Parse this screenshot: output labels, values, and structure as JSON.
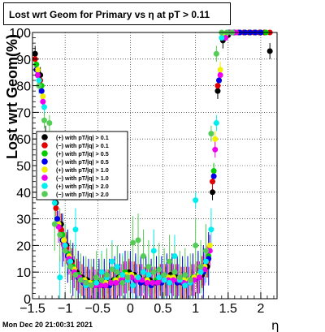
{
  "chart_data": {
    "type": "scatter",
    "title": "Lost wrt Geom for Primary vs  η at pT > 0.11",
    "xlabel": "η",
    "ylabel": "Lost wrt Geom(%)",
    "xlim": [
      -1.5,
      2.25
    ],
    "ylim": [
      0,
      100
    ],
    "x_ticks": [
      -1.5,
      -1,
      -0.5,
      0,
      0.5,
      1,
      1.5,
      2
    ],
    "x_tick_labels": [
      "−1.5",
      "−1",
      "−0.5",
      "0",
      "0.5",
      "1",
      "1.5",
      "2"
    ],
    "y_ticks": [
      0,
      10,
      20,
      30,
      40,
      50,
      60,
      70,
      80,
      90,
      100
    ],
    "grid": true,
    "legend_position": "middle-left",
    "series": [
      {
        "name": "(+) with pT/|q| > 0.1",
        "color": "#000000",
        "x": [
          -1.46,
          -1.38,
          -1.3,
          -1.22,
          -1.14,
          -1.06,
          -0.98,
          -0.9,
          -0.82,
          -0.74,
          -0.66,
          -0.58,
          -0.5,
          -0.42,
          -0.34,
          -0.26,
          -0.18,
          -0.1,
          -0.02,
          0.06,
          0.14,
          0.22,
          0.3,
          0.38,
          0.46,
          0.54,
          0.62,
          0.7,
          0.78,
          0.86,
          0.94,
          1.02,
          1.1,
          1.18,
          1.26,
          1.34,
          1.42,
          1.5,
          1.58,
          1.66,
          1.74,
          1.82,
          1.9,
          1.98,
          2.06,
          2.14
        ],
        "y": [
          92,
          84,
          62,
          45,
          36,
          28,
          20,
          14,
          10,
          8,
          7,
          6,
          6,
          5,
          6,
          7,
          8,
          9,
          10,
          9,
          8,
          7,
          7,
          6,
          7,
          8,
          9,
          8,
          7,
          6,
          7,
          8,
          9,
          12,
          40,
          78,
          97,
          99,
          100,
          100,
          100,
          100,
          100,
          100,
          100,
          93
        ]
      },
      {
        "name": "(−) with pT/|q| > 0.1",
        "color": "#e00000",
        "x": [
          -1.46,
          -1.38,
          -1.3,
          -1.22,
          -1.14,
          -1.06,
          -0.98,
          -0.9,
          -0.82,
          -0.74,
          -0.66,
          -0.58,
          -0.5,
          -0.42,
          -0.34,
          -0.26,
          -0.18,
          -0.1,
          -0.02,
          0.06,
          0.14,
          0.22,
          0.3,
          0.38,
          0.46,
          0.54,
          0.62,
          0.7,
          0.78,
          0.86,
          0.94,
          1.02,
          1.1,
          1.18,
          1.26,
          1.34,
          1.42,
          1.5,
          1.58,
          1.66,
          1.74,
          1.82,
          1.9,
          1.98,
          2.06,
          2.14
        ],
        "y": [
          90,
          82,
          60,
          44,
          34,
          26,
          19,
          13,
          9,
          7,
          6,
          6,
          5,
          5,
          5,
          6,
          7,
          8,
          9,
          8,
          7,
          6,
          6,
          6,
          7,
          7,
          8,
          7,
          6,
          6,
          7,
          8,
          10,
          14,
          44,
          80,
          98,
          100,
          100,
          100,
          100,
          100,
          100,
          100,
          100,
          100
        ]
      },
      {
        "name": "(+) with pT/|q| > 0.5",
        "color": "#00cc00",
        "x": [
          -1.44,
          -1.36,
          -1.28,
          -1.2,
          -1.12,
          -1.04,
          -0.96,
          -0.88,
          -0.8,
          -0.72,
          -0.64,
          -0.56,
          -0.48,
          -0.4,
          -0.32,
          -0.24,
          -0.16,
          -0.08,
          0.0,
          0.08,
          0.16,
          0.24,
          0.32,
          0.4,
          0.48,
          0.56,
          0.64,
          0.72,
          0.8,
          0.88,
          0.96,
          1.04,
          1.12,
          1.2,
          1.28,
          1.36,
          1.44,
          1.52,
          1.6,
          1.68,
          1.76,
          1.84,
          1.92,
          2.0,
          2.08
        ],
        "y": [
          88,
          80,
          58,
          42,
          30,
          24,
          17,
          12,
          9,
          7,
          6,
          6,
          5,
          6,
          6,
          7,
          8,
          10,
          9,
          8,
          7,
          7,
          6,
          7,
          8,
          8,
          8,
          7,
          7,
          7,
          8,
          9,
          11,
          16,
          48,
          82,
          98,
          100,
          100,
          100,
          100,
          100,
          100,
          100,
          100
        ]
      },
      {
        "name": "(−) with pT/|q| > 0.5",
        "color": "#0000ee",
        "x": [
          -1.44,
          -1.36,
          -1.28,
          -1.2,
          -1.12,
          -1.04,
          -0.96,
          -0.88,
          -0.8,
          -0.72,
          -0.64,
          -0.56,
          -0.48,
          -0.4,
          -0.32,
          -0.24,
          -0.16,
          -0.08,
          0.0,
          0.08,
          0.16,
          0.24,
          0.32,
          0.4,
          0.48,
          0.56,
          0.64,
          0.72,
          0.8,
          0.88,
          0.96,
          1.04,
          1.12,
          1.2,
          1.28,
          1.36,
          1.44,
          1.52,
          1.6,
          1.68,
          1.76,
          1.84,
          1.92,
          2.0
        ],
        "y": [
          86,
          78,
          56,
          40,
          30,
          22,
          16,
          11,
          8,
          6,
          5,
          5,
          5,
          5,
          5,
          6,
          7,
          8,
          8,
          7,
          6,
          6,
          5,
          6,
          6,
          7,
          7,
          6,
          6,
          6,
          7,
          8,
          10,
          15,
          46,
          82,
          98,
          100,
          100,
          100,
          100,
          100,
          100,
          100
        ]
      },
      {
        "name": "(+) with pT/|q| > 1.0",
        "color": "#f0f000",
        "x": [
          -1.42,
          -1.34,
          -1.26,
          -1.18,
          -1.1,
          -1.02,
          -0.94,
          -0.86,
          -0.78,
          -0.7,
          -0.62,
          -0.54,
          -0.46,
          -0.38,
          -0.3,
          -0.22,
          -0.14,
          -0.06,
          0.02,
          0.1,
          0.18,
          0.26,
          0.34,
          0.42,
          0.5,
          0.58,
          0.66,
          0.74,
          0.82,
          0.9,
          0.98,
          1.06,
          1.14,
          1.22,
          1.3,
          1.38,
          1.46,
          1.54,
          1.62
        ],
        "y": [
          86,
          76,
          54,
          40,
          28,
          22,
          16,
          11,
          8,
          7,
          6,
          5,
          5,
          6,
          6,
          7,
          8,
          9,
          9,
          8,
          7,
          7,
          6,
          6,
          7,
          8,
          8,
          7,
          7,
          7,
          8,
          9,
          12,
          20,
          60,
          86,
          99,
          100,
          100
        ]
      },
      {
        "name": "(−) with pT/|q| > 1.0",
        "color": "#ee00ee",
        "x": [
          -1.42,
          -1.34,
          -1.26,
          -1.18,
          -1.1,
          -1.02,
          -0.94,
          -0.86,
          -0.78,
          -0.7,
          -0.62,
          -0.54,
          -0.46,
          -0.38,
          -0.3,
          -0.22,
          -0.14,
          -0.06,
          0.02,
          0.1,
          0.18,
          0.26,
          0.34,
          0.42,
          0.5,
          0.58,
          0.66,
          0.74,
          0.82,
          0.9,
          0.98,
          1.06,
          1.14,
          1.22,
          1.3,
          1.38,
          1.46,
          1.54,
          1.62
        ],
        "y": [
          84,
          74,
          52,
          38,
          27,
          20,
          15,
          10,
          8,
          6,
          5,
          5,
          5,
          5,
          6,
          6,
          7,
          8,
          8,
          7,
          7,
          6,
          6,
          6,
          7,
          7,
          7,
          7,
          6,
          6,
          7,
          8,
          11,
          18,
          56,
          84,
          98,
          100,
          100
        ]
      },
      {
        "name": "(+) with pT/|q| > 2.0",
        "color": "#00eeee",
        "x": [
          -1.4,
          -1.32,
          -1.24,
          -1.16,
          -1.08,
          -1.0,
          -0.92,
          -0.84,
          -0.76,
          -0.68,
          -0.6,
          -0.52,
          -0.44,
          -0.36,
          -0.28,
          -0.2,
          -0.12,
          -0.04,
          0.04,
          0.12,
          0.2,
          0.28,
          0.36,
          0.44,
          0.52,
          0.6,
          0.68,
          0.76,
          0.84,
          0.92,
          1.0,
          1.08,
          1.16,
          1.24,
          1.32,
          1.4,
          1.48,
          1.56
        ],
        "y": [
          82,
          72,
          50,
          36,
          8,
          20,
          14,
          26,
          7,
          5,
          5,
          6,
          10,
          8,
          14,
          12,
          9,
          7,
          5,
          8,
          10,
          9,
          18,
          8,
          7,
          6,
          16,
          7,
          5,
          6,
          37,
          10,
          14,
          26,
          66,
          98,
          100,
          100
        ]
      },
      {
        "name": "(−) with pT/|q| > 2.0",
        "color": "#55cc55",
        "x": [
          -1.4,
          -1.32,
          -1.24,
          -1.16,
          -1.08,
          -1.0,
          -0.92,
          -0.84,
          -0.76,
          -0.68,
          -0.6,
          -0.52,
          -0.44,
          -0.36,
          -0.28,
          -0.2,
          -0.12,
          -0.04,
          0.04,
          0.12,
          0.2,
          0.28,
          0.36,
          0.44,
          0.52,
          0.6,
          0.68,
          0.76,
          0.84,
          0.92,
          1.0,
          1.08,
          1.16,
          1.24,
          1.32,
          1.4,
          1.48,
          1.56
        ],
        "y": [
          80,
          67,
          66,
          28,
          24,
          18,
          12,
          9,
          7,
          6,
          5,
          8,
          7,
          9,
          11,
          10,
          6,
          8,
          21,
          22,
          16,
          12,
          10,
          11,
          9,
          14,
          10,
          8,
          9,
          7,
          20,
          12,
          18,
          62,
          92,
          100,
          100,
          100
        ]
      }
    ]
  },
  "footer": {
    "date": "Mon Dec 20 21:00:31 2021"
  }
}
